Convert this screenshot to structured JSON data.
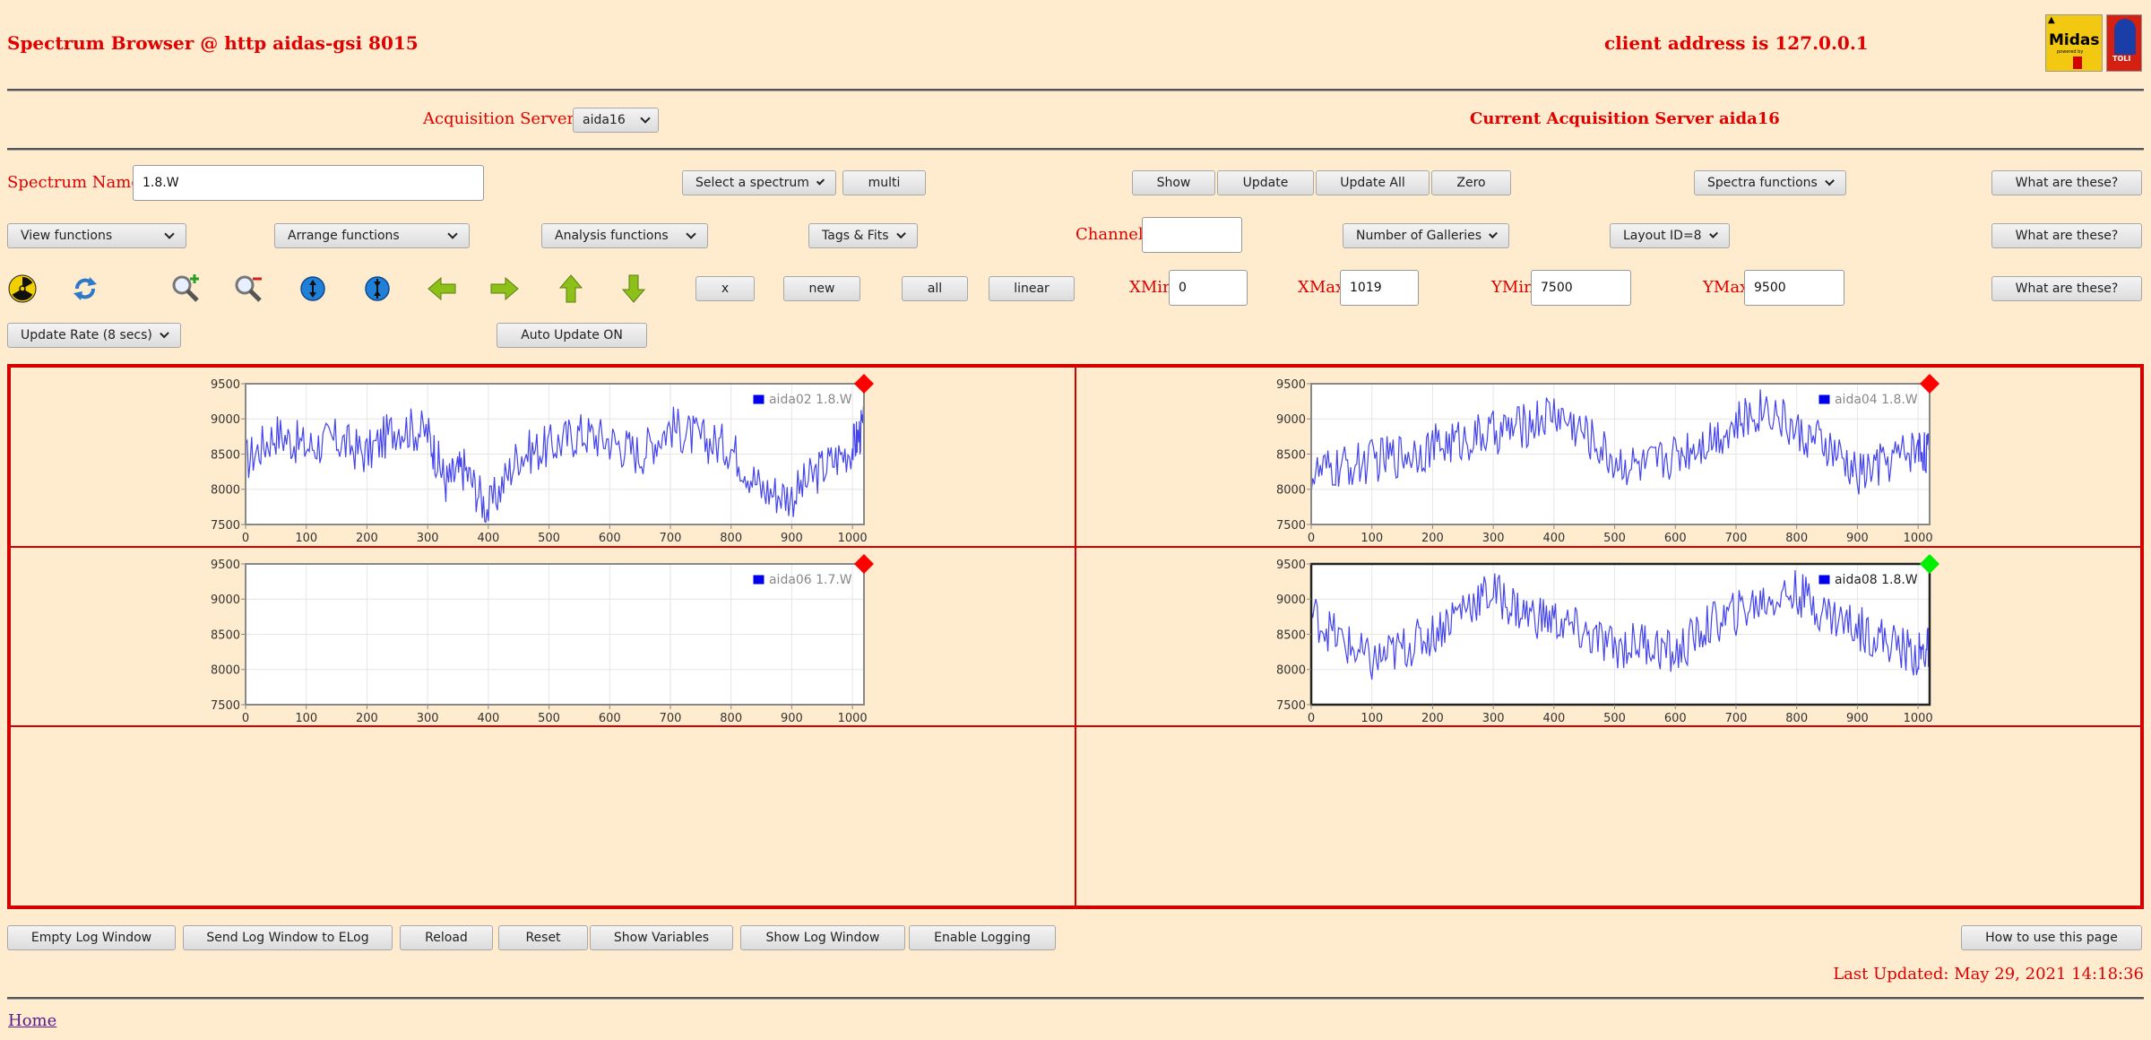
{
  "header": {
    "title": "Spectrum Browser @ http aidas-gsi 8015",
    "client": "client address is 127.0.0.1",
    "logo_midas": "Midas",
    "logo_sub": "powered by",
    "logo_right": "TOLI"
  },
  "acq": {
    "label": "Acquisition Servers",
    "server_select": "aida16",
    "current": "Current Acquisition Server aida16"
  },
  "row1": {
    "spectrum_name_label": "Spectrum Name:",
    "spectrum_name_value": "1.8.W",
    "select_spectrum": "Select a spectrum",
    "multi": "multi",
    "show": "Show",
    "update": "Update",
    "update_all": "Update All",
    "zero": "Zero",
    "spectra_functions": "Spectra functions",
    "what": "What are these?"
  },
  "row2": {
    "view_functions": "View functions",
    "arrange_functions": "Arrange functions",
    "analysis_functions": "Analysis functions",
    "tags_fits": "Tags & Fits",
    "channel_label": "Channel:",
    "channel_value": "",
    "galleries": "Number of Galleries",
    "layout": "Layout ID=8",
    "what": "What are these?"
  },
  "row3": {
    "icons": [
      "radiation-icon",
      "refresh-icon",
      "zoom-in-icon",
      "zoom-out-icon",
      "expand-vertical-icon",
      "compress-vertical-icon",
      "arrow-left-icon",
      "arrow-right-icon",
      "arrow-up-icon",
      "arrow-down-icon"
    ],
    "x": "x",
    "new": "new",
    "all": "all",
    "linear": "linear",
    "xmin_label": "XMin",
    "xmin_value": "0",
    "xmax_label": "XMax",
    "xmax_value": "1019",
    "ymin_label": "YMin",
    "ymin_value": "7500",
    "ymax_label": "YMax",
    "ymax_value": "9500",
    "what": "What are these?"
  },
  "row4": {
    "update_rate": "Update Rate (8 secs)",
    "auto_update": "Auto Update ON"
  },
  "colors": {
    "accent": "#e00000",
    "trace": "#4444ee",
    "marker_inactive": "#ff0000",
    "marker_active": "#00ee00"
  },
  "chart_data": [
    {
      "type": "line",
      "panel": "top-left",
      "xlim": [
        0,
        1019
      ],
      "ylim": [
        7500,
        9500
      ],
      "x_ticks": [
        "0",
        "100",
        "200",
        "300",
        "400",
        "500",
        "600",
        "700",
        "800",
        "900",
        "1000"
      ],
      "y_ticks": [
        "9500",
        "9000",
        "8500",
        "8000",
        "7500"
      ],
      "legend": "aida02 1.8.W",
      "has_data": true,
      "selected": false,
      "series": [
        {
          "x": [
            0,
            50,
            100,
            150,
            200,
            250,
            300,
            330,
            360,
            400,
            450,
            500,
            550,
            600,
            650,
            700,
            750,
            800,
            850,
            900,
            950,
            1000,
            1019
          ],
          "y": [
            8400,
            8800,
            8600,
            8700,
            8500,
            8900,
            8800,
            8100,
            8300,
            7700,
            8500,
            8600,
            8800,
            8700,
            8500,
            8900,
            8700,
            8600,
            8000,
            7900,
            8300,
            8600,
            8900
          ]
        }
      ]
    },
    {
      "type": "line",
      "panel": "top-right",
      "xlim": [
        0,
        1019
      ],
      "ylim": [
        7500,
        9500
      ],
      "x_ticks": [
        "0",
        "100",
        "200",
        "300",
        "400",
        "500",
        "600",
        "700",
        "800",
        "900",
        "1000"
      ],
      "y_ticks": [
        "9500",
        "9000",
        "8500",
        "8000",
        "7500"
      ],
      "legend": "aida04 1.8.W",
      "has_data": true,
      "selected": false,
      "series": [
        {
          "x": [
            0,
            50,
            100,
            150,
            200,
            250,
            300,
            350,
            400,
            450,
            500,
            550,
            600,
            650,
            700,
            750,
            800,
            850,
            900,
            950,
            1000,
            1019
          ],
          "y": [
            8200,
            8300,
            8400,
            8500,
            8600,
            8700,
            8800,
            8900,
            9100,
            8800,
            8400,
            8300,
            8500,
            8700,
            8900,
            9200,
            8800,
            8600,
            8200,
            8400,
            8600,
            8500
          ]
        }
      ]
    },
    {
      "type": "line",
      "panel": "bottom-left",
      "xlim": [
        0,
        1019
      ],
      "ylim": [
        7500,
        9500
      ],
      "x_ticks": [
        "0",
        "100",
        "200",
        "300",
        "400",
        "500",
        "600",
        "700",
        "800",
        "900",
        "1000"
      ],
      "y_ticks": [
        "9500",
        "9000",
        "8500",
        "8000",
        "7500"
      ],
      "legend": "aida06 1.7.W",
      "has_data": false,
      "selected": false,
      "series": []
    },
    {
      "type": "line",
      "panel": "bottom-right",
      "xlim": [
        0,
        1019
      ],
      "ylim": [
        7500,
        9500
      ],
      "x_ticks": [
        "0",
        "100",
        "200",
        "300",
        "400",
        "500",
        "600",
        "700",
        "800",
        "900",
        "1000"
      ],
      "y_ticks": [
        "9500",
        "9000",
        "8500",
        "8000",
        "7500"
      ],
      "legend": "aida08 1.8.W",
      "has_data": true,
      "selected": true,
      "series": [
        {
          "x": [
            0,
            50,
            100,
            150,
            200,
            250,
            300,
            350,
            400,
            450,
            500,
            550,
            600,
            650,
            700,
            750,
            800,
            850,
            900,
            950,
            1000,
            1019
          ],
          "y": [
            8800,
            8400,
            8100,
            8300,
            8500,
            8900,
            9100,
            8800,
            8700,
            8500,
            8300,
            8400,
            8200,
            8600,
            8800,
            9000,
            9100,
            8800,
            8600,
            8400,
            8200,
            8300
          ]
        }
      ]
    }
  ],
  "bottom": {
    "empty_log": "Empty Log Window",
    "send_log": "Send Log Window to ELog",
    "reload": "Reload",
    "reset": "Reset",
    "show_vars": "Show Variables",
    "show_log": "Show Log Window",
    "enable_logging": "Enable Logging",
    "how_to": "How to use this page",
    "last_updated": "Last Updated: May 29, 2021 14:18:36",
    "home": "Home"
  }
}
